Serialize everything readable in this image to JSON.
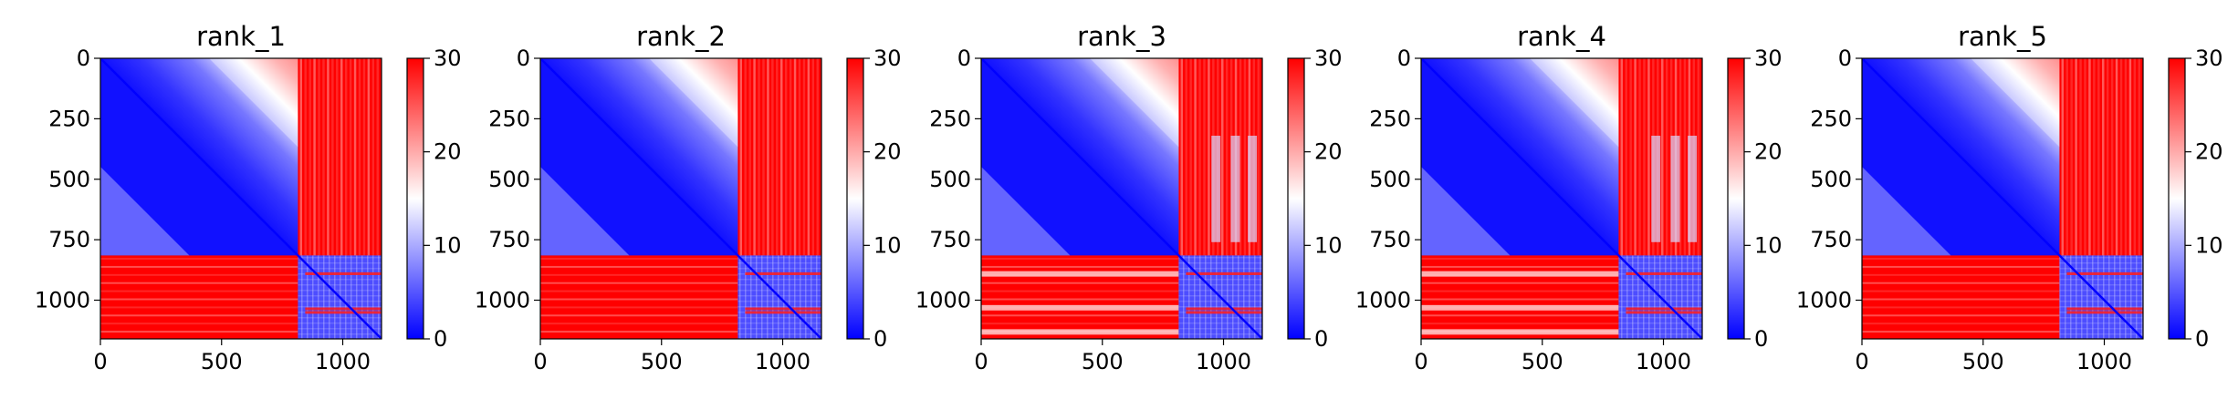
{
  "chart_data": [
    {
      "type": "heatmap",
      "title": "rank_1",
      "x_ticks": [
        0,
        500,
        1000
      ],
      "y_ticks": [
        0,
        250,
        500,
        750,
        1000
      ],
      "xlim": [
        0,
        1160
      ],
      "ylim": [
        1160,
        0
      ],
      "matrix_size": 1160,
      "block_split": 815,
      "colorbar": {
        "range": [
          0,
          30
        ],
        "ticks": [
          0,
          10,
          20,
          30
        ],
        "colormap": "bwr"
      },
      "colors": {
        "low": "#0000ff",
        "mid": "#ffffff",
        "high": "#ff0000"
      }
    },
    {
      "type": "heatmap",
      "title": "rank_2",
      "x_ticks": [
        0,
        500,
        1000
      ],
      "y_ticks": [
        0,
        250,
        500,
        750,
        1000
      ],
      "xlim": [
        0,
        1160
      ],
      "ylim": [
        1160,
        0
      ],
      "matrix_size": 1160,
      "block_split": 815,
      "colorbar": {
        "range": [
          0,
          30
        ],
        "ticks": [
          0,
          10,
          20,
          30
        ],
        "colormap": "bwr"
      },
      "colors": {
        "low": "#0000ff",
        "mid": "#ffffff",
        "high": "#ff0000"
      }
    },
    {
      "type": "heatmap",
      "title": "rank_3",
      "x_ticks": [
        0,
        500,
        1000
      ],
      "y_ticks": [
        0,
        250,
        500,
        750,
        1000
      ],
      "xlim": [
        0,
        1160
      ],
      "ylim": [
        1160,
        0
      ],
      "matrix_size": 1160,
      "block_split": 815,
      "colorbar": {
        "range": [
          0,
          30
        ],
        "ticks": [
          0,
          10,
          20,
          30
        ],
        "colormap": "bwr"
      },
      "colors": {
        "low": "#0000ff",
        "mid": "#ffffff",
        "high": "#ff0000"
      }
    },
    {
      "type": "heatmap",
      "title": "rank_4",
      "x_ticks": [
        0,
        500,
        1000
      ],
      "y_ticks": [
        0,
        250,
        500,
        750,
        1000
      ],
      "xlim": [
        0,
        1160
      ],
      "ylim": [
        1160,
        0
      ],
      "matrix_size": 1160,
      "block_split": 815,
      "colorbar": {
        "range": [
          0,
          30
        ],
        "ticks": [
          0,
          10,
          20,
          30
        ],
        "colormap": "bwr"
      },
      "colors": {
        "low": "#0000ff",
        "mid": "#ffffff",
        "high": "#ff0000"
      }
    },
    {
      "type": "heatmap",
      "title": "rank_5",
      "x_ticks": [
        0,
        500,
        1000
      ],
      "y_ticks": [
        0,
        250,
        500,
        750,
        1000
      ],
      "xlim": [
        0,
        1160
      ],
      "ylim": [
        1160,
        0
      ],
      "matrix_size": 1160,
      "block_split": 815,
      "colorbar": {
        "range": [
          0,
          30
        ],
        "ticks": [
          0,
          10,
          20,
          30
        ],
        "colormap": "bwr"
      },
      "colors": {
        "low": "#0000ff",
        "mid": "#ffffff",
        "high": "#ff0000"
      }
    }
  ]
}
